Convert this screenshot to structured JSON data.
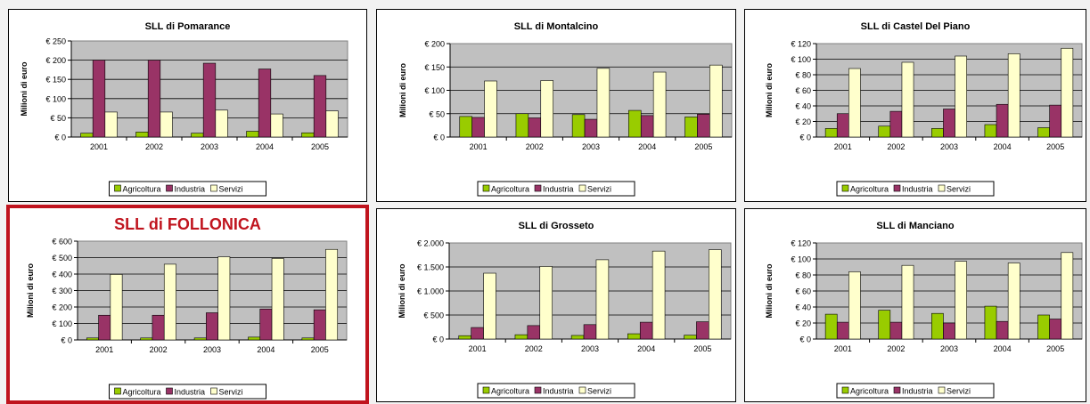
{
  "colors": {
    "Agricoltura": "#99cc00",
    "Industria": "#993366",
    "Servizi": "#ffffcc",
    "plot_bg": "#c0c0c0",
    "highlight": "#c0141e"
  },
  "chart_data": [
    {
      "type": "bar",
      "title": "SLL di Pomarance",
      "ylabel": "Milioni di euro",
      "categories": [
        "2001",
        "2002",
        "2003",
        "2004",
        "2005"
      ],
      "series": [
        {
          "name": "Agricoltura",
          "values": [
            10,
            13,
            10,
            15,
            11
          ]
        },
        {
          "name": "Industria",
          "values": [
            200,
            200,
            192,
            177,
            160
          ]
        },
        {
          "name": "Servizi",
          "values": [
            65,
            65,
            70,
            60,
            68
          ]
        }
      ],
      "ylim": [
        0,
        250
      ],
      "yticks": [
        0,
        50,
        100,
        150,
        200,
        250
      ],
      "ytick_labels": [
        "€ 0",
        "€ 50",
        "€ 100",
        "€ 150",
        "€ 200",
        "€ 250"
      ],
      "legend_position": "bottom",
      "grid": true
    },
    {
      "type": "bar",
      "title": "SLL di Montalcino",
      "ylabel": "Milioni di euro",
      "categories": [
        "2001",
        "2002",
        "2003",
        "2004",
        "2005"
      ],
      "series": [
        {
          "name": "Agricoltura",
          "values": [
            44,
            50,
            48,
            57,
            43
          ]
        },
        {
          "name": "Industria",
          "values": [
            42,
            41,
            38,
            46,
            49
          ]
        },
        {
          "name": "Servizi",
          "values": [
            120,
            121,
            147,
            139,
            154
          ]
        }
      ],
      "ylim": [
        0,
        200
      ],
      "yticks": [
        0,
        50,
        100,
        150,
        200
      ],
      "ytick_labels": [
        "€ 0",
        "€ 50",
        "€ 100",
        "€ 150",
        "€ 200"
      ],
      "legend_position": "bottom",
      "grid": true
    },
    {
      "type": "bar",
      "title": "SLL di Castel Del Piano",
      "ylabel": "Milioni di euro",
      "categories": [
        "2001",
        "2002",
        "2003",
        "2004",
        "2005"
      ],
      "series": [
        {
          "name": "Agricoltura",
          "values": [
            11,
            14,
            11,
            16,
            12
          ]
        },
        {
          "name": "Industria",
          "values": [
            30,
            33,
            36,
            42,
            41
          ]
        },
        {
          "name": "Servizi",
          "values": [
            88,
            96,
            104,
            107,
            114
          ]
        }
      ],
      "ylim": [
        0,
        120
      ],
      "yticks": [
        0,
        20,
        40,
        60,
        80,
        100,
        120
      ],
      "ytick_labels": [
        "€ 0",
        "€ 20",
        "€ 40",
        "€ 60",
        "€ 80",
        "€ 100",
        "€ 120"
      ],
      "legend_position": "bottom",
      "grid": true
    },
    {
      "type": "bar",
      "title": "SLL di FOLLONICA",
      "ylabel": "Milioni di euro",
      "categories": [
        "2001",
        "2002",
        "2003",
        "2004",
        "2005"
      ],
      "series": [
        {
          "name": "Agricoltura",
          "values": [
            12,
            12,
            12,
            17,
            12
          ]
        },
        {
          "name": "Industria",
          "values": [
            150,
            150,
            165,
            188,
            183
          ]
        },
        {
          "name": "Servizi",
          "values": [
            398,
            460,
            505,
            495,
            550
          ]
        }
      ],
      "ylim": [
        0,
        600
      ],
      "yticks": [
        0,
        100,
        200,
        300,
        400,
        500,
        600
      ],
      "ytick_labels": [
        "€ 0",
        "€ 100",
        "€ 200",
        "€ 300",
        "€ 400",
        "€ 500",
        "€ 600"
      ],
      "legend_position": "bottom",
      "grid": true,
      "highlighted": true
    },
    {
      "type": "bar",
      "title": "SLL di Grosseto",
      "ylabel": "Milioni di euro",
      "categories": [
        "2001",
        "2002",
        "2003",
        "2004",
        "2005"
      ],
      "series": [
        {
          "name": "Agricoltura",
          "values": [
            70,
            90,
            75,
            110,
            80
          ]
        },
        {
          "name": "Industria",
          "values": [
            240,
            280,
            300,
            350,
            360
          ]
        },
        {
          "name": "Servizi",
          "values": [
            1370,
            1510,
            1650,
            1830,
            1860
          ]
        }
      ],
      "ylim": [
        0,
        2000
      ],
      "yticks": [
        0,
        500,
        1000,
        1500,
        2000
      ],
      "ytick_labels": [
        "€ 0",
        "€ 500",
        "€ 1.000",
        "€ 1.500",
        "€ 2.000"
      ],
      "legend_position": "bottom",
      "grid": true
    },
    {
      "type": "bar",
      "title": "SLL di Manciano",
      "ylabel": "Milioni di euro",
      "categories": [
        "2001",
        "2002",
        "2003",
        "2004",
        "2005"
      ],
      "series": [
        {
          "name": "Agricoltura",
          "values": [
            31,
            36,
            32,
            41,
            30
          ]
        },
        {
          "name": "Industria",
          "values": [
            21,
            21,
            20,
            22,
            25
          ]
        },
        {
          "name": "Servizi",
          "values": [
            84,
            92,
            97,
            95,
            108
          ]
        }
      ],
      "ylim": [
        0,
        120
      ],
      "yticks": [
        0,
        20,
        40,
        60,
        80,
        100,
        120
      ],
      "ytick_labels": [
        "€ 0",
        "€ 20",
        "€ 40",
        "€ 60",
        "€ 80",
        "€ 100",
        "€ 120"
      ],
      "legend_position": "bottom",
      "grid": true
    }
  ]
}
